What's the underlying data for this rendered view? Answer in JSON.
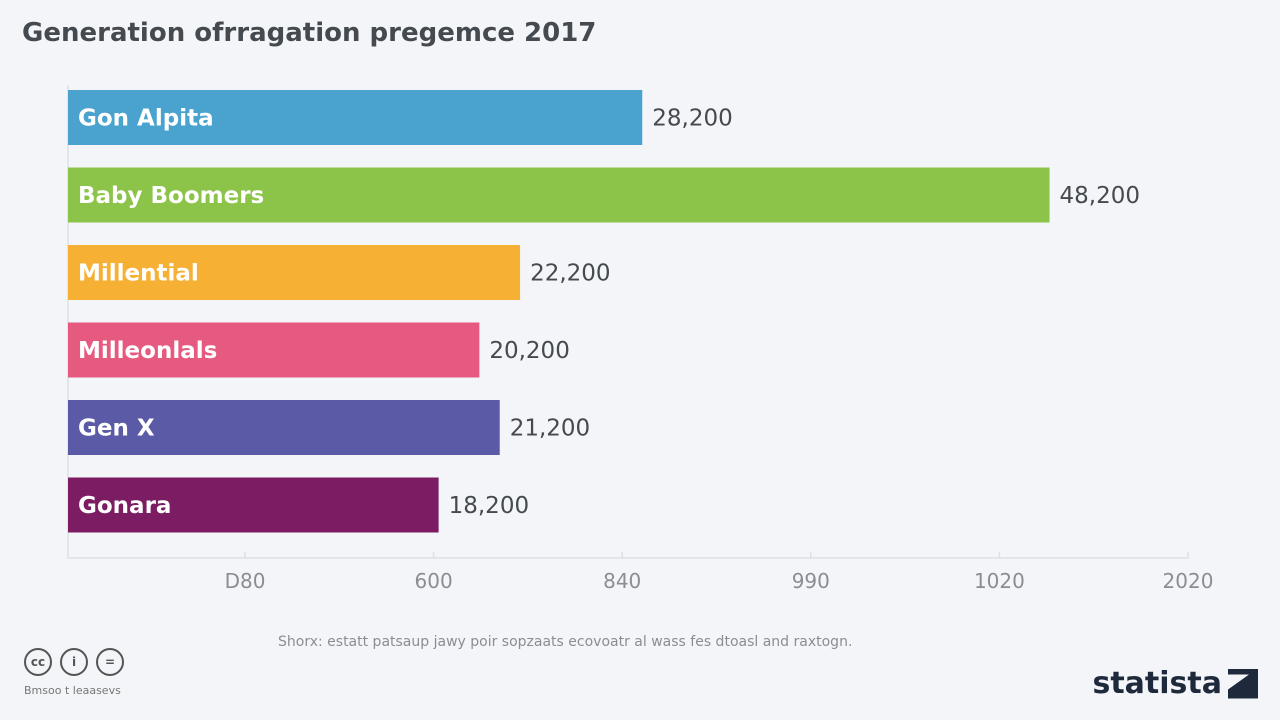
{
  "chart_data": {
    "type": "bar",
    "orientation": "horizontal",
    "title": "Generation ofrragation pregemce 2017",
    "categories": [
      "Gon Alpita",
      "Baby Boomers",
      "Millential",
      "Milleonlals",
      "Gen X",
      "Gonara"
    ],
    "values": [
      28200,
      48200,
      22200,
      20200,
      21200,
      18200
    ],
    "value_labels": [
      "28,200",
      "48,200",
      "22,200",
      "20,200",
      "21,200",
      "18,200"
    ],
    "colors": [
      "#4aa3cf",
      "#8cc349",
      "#f6b134",
      "#e65a80",
      "#5a5aa6",
      "#7c1c62"
    ],
    "x_tick_labels": [
      "D80",
      "600",
      "840",
      "990",
      "1020",
      "2020"
    ],
    "xlim": [
      0,
      55000
    ],
    "grid": false,
    "legend": "none"
  },
  "source": "Shorx: estatt patsaup jawy poir sopzaats ecovoatr al wass fes dtoasl and raxtogn.",
  "license_label": "Bmsoo t leaasevs",
  "logo": "statista"
}
